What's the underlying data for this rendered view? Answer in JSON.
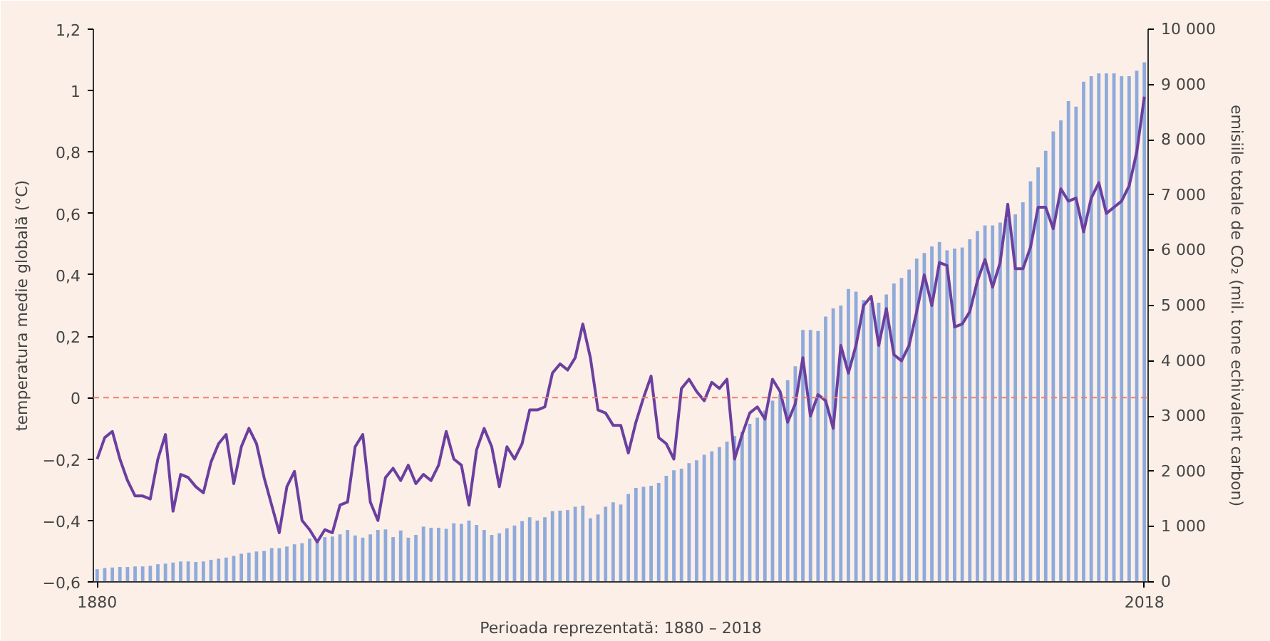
{
  "chart_data": {
    "type": "bar",
    "ylabel": "temperatura medie globală (°C)",
    "y2label": "emisiile totale de CO₂ (mil. tone echivalent carbon)",
    "xlabel": "Perioada reprezentată: 1880 – 2018",
    "x": [
      1880,
      1881,
      1882,
      1883,
      1884,
      1885,
      1886,
      1887,
      1888,
      1889,
      1890,
      1891,
      1892,
      1893,
      1894,
      1895,
      1896,
      1897,
      1898,
      1899,
      1900,
      1901,
      1902,
      1903,
      1904,
      1905,
      1906,
      1907,
      1908,
      1909,
      1910,
      1911,
      1912,
      1913,
      1914,
      1915,
      1916,
      1917,
      1918,
      1919,
      1920,
      1921,
      1922,
      1923,
      1924,
      1925,
      1926,
      1927,
      1928,
      1929,
      1930,
      1931,
      1932,
      1933,
      1934,
      1935,
      1936,
      1937,
      1938,
      1939,
      1940,
      1941,
      1942,
      1943,
      1944,
      1945,
      1946,
      1947,
      1948,
      1949,
      1950,
      1951,
      1952,
      1953,
      1954,
      1955,
      1956,
      1957,
      1958,
      1959,
      1960,
      1961,
      1962,
      1963,
      1964,
      1965,
      1966,
      1967,
      1968,
      1969,
      1970,
      1971,
      1972,
      1973,
      1974,
      1975,
      1976,
      1977,
      1978,
      1979,
      1980,
      1981,
      1982,
      1983,
      1984,
      1985,
      1986,
      1987,
      1988,
      1989,
      1990,
      1991,
      1992,
      1993,
      1994,
      1995,
      1996,
      1997,
      1998,
      1999,
      2000,
      2001,
      2002,
      2003,
      2004,
      2005,
      2006,
      2007,
      2008,
      2009,
      2010,
      2011,
      2012,
      2013,
      2014,
      2015,
      2016,
      2017,
      2018
    ],
    "series": [
      {
        "axis": "y2",
        "color": "#8eaadb",
        "values": [
          230,
          250,
          260,
          270,
          270,
          280,
          280,
          290,
          320,
          330,
          350,
          370,
          370,
          360,
          370,
          400,
          420,
          440,
          470,
          510,
          530,
          550,
          560,
          610,
          610,
          640,
          680,
          700,
          780,
          760,
          810,
          820,
          860,
          940,
          840,
          800,
          860,
          940,
          950,
          810,
          930,
          800,
          850,
          1000,
          980,
          980,
          960,
          1060,
          1050,
          1110,
          1030,
          940,
          850,
          880,
          970,
          1020,
          1100,
          1170,
          1110,
          1170,
          1280,
          1290,
          1300,
          1360,
          1380,
          1150,
          1220,
          1360,
          1440,
          1400,
          1590,
          1700,
          1720,
          1740,
          1790,
          1920,
          2020,
          2050,
          2150,
          2200,
          2300,
          2360,
          2440,
          2540,
          2640,
          2720,
          2860,
          2970,
          3100,
          3280,
          3400,
          3650,
          3900,
          4560,
          4560,
          4540,
          4800,
          4950,
          5000,
          5300,
          5250,
          5100,
          5050,
          5050,
          5200,
          5400,
          5500,
          5650,
          5850,
          5950,
          6070,
          6150,
          6000,
          6030,
          6050,
          6200,
          6350,
          6450,
          6450,
          6500,
          6570,
          6650,
          6870,
          7250,
          7500,
          7800,
          8150,
          8350,
          8700,
          8600,
          9050,
          9150,
          9200,
          9200,
          9200,
          9150,
          9150,
          9250,
          9400
        ]
      },
      {
        "type": "line",
        "color": "#6b3fa0",
        "values": [
          -0.2,
          -0.13,
          -0.11,
          -0.2,
          -0.27,
          -0.32,
          -0.32,
          -0.33,
          -0.2,
          -0.12,
          -0.37,
          -0.25,
          -0.26,
          -0.29,
          -0.31,
          -0.21,
          -0.15,
          -0.12,
          -0.28,
          -0.16,
          -0.1,
          -0.15,
          -0.26,
          -0.35,
          -0.44,
          -0.29,
          -0.24,
          -0.4,
          -0.43,
          -0.47,
          -0.43,
          -0.44,
          -0.35,
          -0.34,
          -0.16,
          -0.12,
          -0.34,
          -0.4,
          -0.26,
          -0.23,
          -0.27,
          -0.22,
          -0.28,
          -0.25,
          -0.27,
          -0.22,
          -0.11,
          -0.2,
          -0.22,
          -0.35,
          -0.17,
          -0.1,
          -0.16,
          -0.29,
          -0.16,
          -0.2,
          -0.15,
          -0.04,
          -0.04,
          -0.03,
          0.08,
          0.11,
          0.09,
          0.13,
          0.24,
          0.13,
          -0.04,
          -0.05,
          -0.09,
          -0.09,
          -0.18,
          -0.08,
          0.0,
          0.07,
          -0.13,
          -0.15,
          -0.2,
          0.03,
          0.06,
          0.02,
          -0.01,
          0.05,
          0.03,
          0.06,
          -0.2,
          -0.12,
          -0.05,
          -0.03,
          -0.07,
          0.06,
          0.02,
          -0.08,
          -0.02,
          0.13,
          -0.06,
          0.01,
          -0.01,
          -0.1,
          0.17,
          0.08,
          0.17,
          0.3,
          0.33,
          0.17,
          0.29,
          0.14,
          0.12,
          0.17,
          0.28,
          0.4,
          0.3,
          0.44,
          0.43,
          0.23,
          0.24,
          0.28,
          0.38,
          0.45,
          0.36,
          0.44,
          0.63,
          0.42,
          0.42,
          0.49,
          0.62,
          0.62,
          0.55,
          0.68,
          0.64,
          0.65,
          0.54,
          0.65,
          0.7,
          0.6,
          0.62,
          0.64,
          0.69,
          0.8,
          0.98
        ]
      }
    ],
    "xlim": [
      1879.5,
      2018.5
    ],
    "xticks": [
      1880,
      2018
    ],
    "ylim": [
      -0.6,
      1.2
    ],
    "yticks": [
      {
        "value": -0.6,
        "label": "−0,6"
      },
      {
        "value": -0.4,
        "label": "−0,4"
      },
      {
        "value": -0.2,
        "label": "−0,2"
      },
      0,
      {
        "value": 0.2,
        "label": "0,2"
      },
      {
        "value": 0.4,
        "label": "0,4"
      },
      {
        "value": 0.6,
        "label": "0,6"
      },
      {
        "value": 0.8,
        "label": "0,8"
      },
      1,
      {
        "value": 1.2,
        "label": "1,2"
      }
    ],
    "y2lim": [
      0,
      10000
    ],
    "y2ticks": [
      0,
      {
        "value": 1000,
        "label": "1 000"
      },
      {
        "value": 2000,
        "label": "2 000"
      },
      {
        "value": 3000,
        "label": "3 000"
      },
      {
        "value": 4000,
        "label": "4 000"
      },
      {
        "value": 5000,
        "label": "5 000"
      },
      {
        "value": 6000,
        "label": "6 000"
      },
      {
        "value": 7000,
        "label": "7 000"
      },
      {
        "value": 8000,
        "label": "8 000"
      },
      {
        "value": 9000,
        "label": "9 000"
      },
      {
        "value": 10000,
        "label": "10 000"
      }
    ],
    "ref_lines": [
      {
        "axis": "y",
        "value": 0,
        "color": "#f08070",
        "line_style": "dashed"
      }
    ],
    "grid": false
  }
}
